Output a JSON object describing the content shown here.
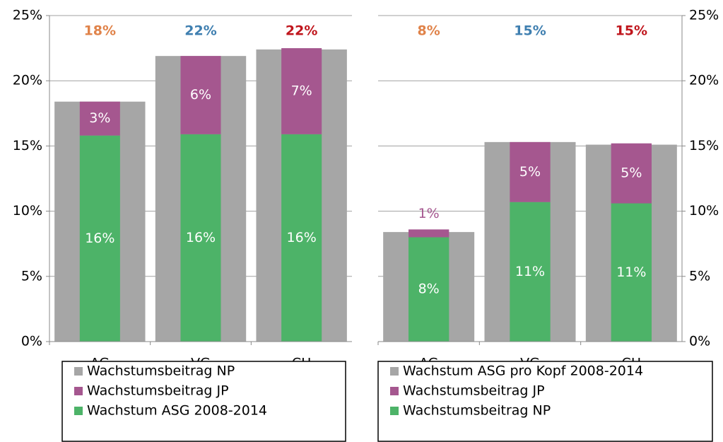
{
  "chart_data": [
    {
      "type": "bar",
      "yaxis": "left",
      "categories": [
        "AG",
        "VG",
        "CH"
      ],
      "ylim": [
        0,
        25
      ],
      "yticks": [
        {
          "value": 0,
          "label": "0%"
        },
        {
          "value": 5,
          "label": "5%"
        },
        {
          "value": 10,
          "label": "10%"
        },
        {
          "value": 15,
          "label": "15%"
        },
        {
          "value": 20,
          "label": "20%"
        },
        {
          "value": 25,
          "label": "25%"
        }
      ],
      "grid": true,
      "series": [
        {
          "name": "Wachstumsbeitrag NP",
          "color": "#a6a6a6",
          "values": [
            18.4,
            21.9,
            22.4
          ],
          "value_labels": [
            "18%",
            "22%",
            "22%"
          ],
          "value_label_colors": [
            "#e0834a",
            "#3f7fb0",
            "#c0161d"
          ]
        },
        {
          "name": "Wachstumsbeitrag JP",
          "color": "#a5578f",
          "values": [
            2.6,
            6.0,
            6.6
          ],
          "value_labels": [
            "3%",
            "6%",
            "7%"
          ]
        },
        {
          "name": "Wachstum ASG 2008-2014",
          "color": "#4db368",
          "values": [
            15.8,
            15.9,
            15.9
          ],
          "value_labels": [
            "16%",
            "16%",
            "16%"
          ]
        }
      ]
    },
    {
      "type": "bar",
      "yaxis": "right",
      "categories": [
        "AG",
        "VG",
        "CH"
      ],
      "ylim": [
        0,
        25
      ],
      "yticks": [
        {
          "value": 0,
          "label": "0%"
        },
        {
          "value": 5,
          "label": "5%"
        },
        {
          "value": 10,
          "label": "10%"
        },
        {
          "value": 15,
          "label": "15%"
        },
        {
          "value": 20,
          "label": "20%"
        },
        {
          "value": 25,
          "label": "25%"
        }
      ],
      "grid": true,
      "series": [
        {
          "name": "Wachstum ASG pro Kopf 2008-2014",
          "color": "#a6a6a6",
          "values": [
            8.4,
            15.3,
            15.1
          ],
          "value_labels": [
            "8%",
            "15%",
            "15%"
          ],
          "value_label_colors": [
            "#e0834a",
            "#3f7fb0",
            "#c0161d"
          ]
        },
        {
          "name": "Wachstumsbeitrag JP",
          "color": "#a5578f",
          "values": [
            0.6,
            4.6,
            4.6
          ],
          "value_labels": [
            "1%",
            "5%",
            "5%"
          ]
        },
        {
          "name": "Wachstumsbeitrag NP",
          "color": "#4db368",
          "values": [
            8.0,
            10.7,
            10.6
          ],
          "value_labels": [
            "8%",
            "11%",
            "11%"
          ]
        }
      ]
    }
  ]
}
